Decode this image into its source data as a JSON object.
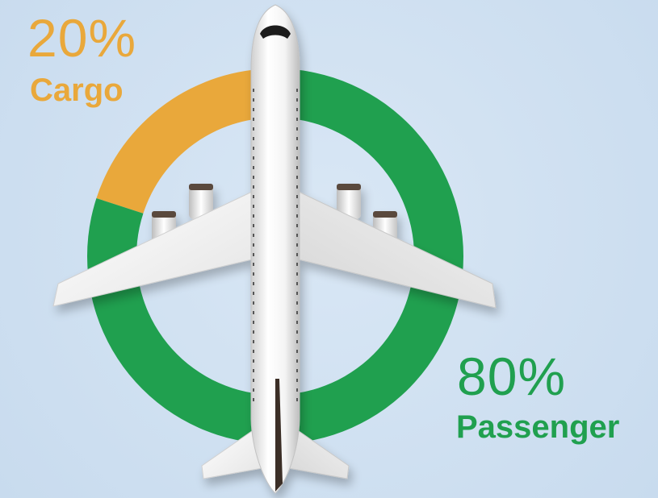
{
  "chart_data": {
    "type": "pie",
    "style": "donut",
    "slices": [
      {
        "name": "Cargo",
        "value": 20,
        "pct_label": "20%",
        "color": "#e9a83b"
      },
      {
        "name": "Passenger",
        "value": 80,
        "pct_label": "80%",
        "color": "#20a04f"
      }
    ],
    "center_image": "airplane-top-view"
  },
  "background_color": "#cfe0f1"
}
